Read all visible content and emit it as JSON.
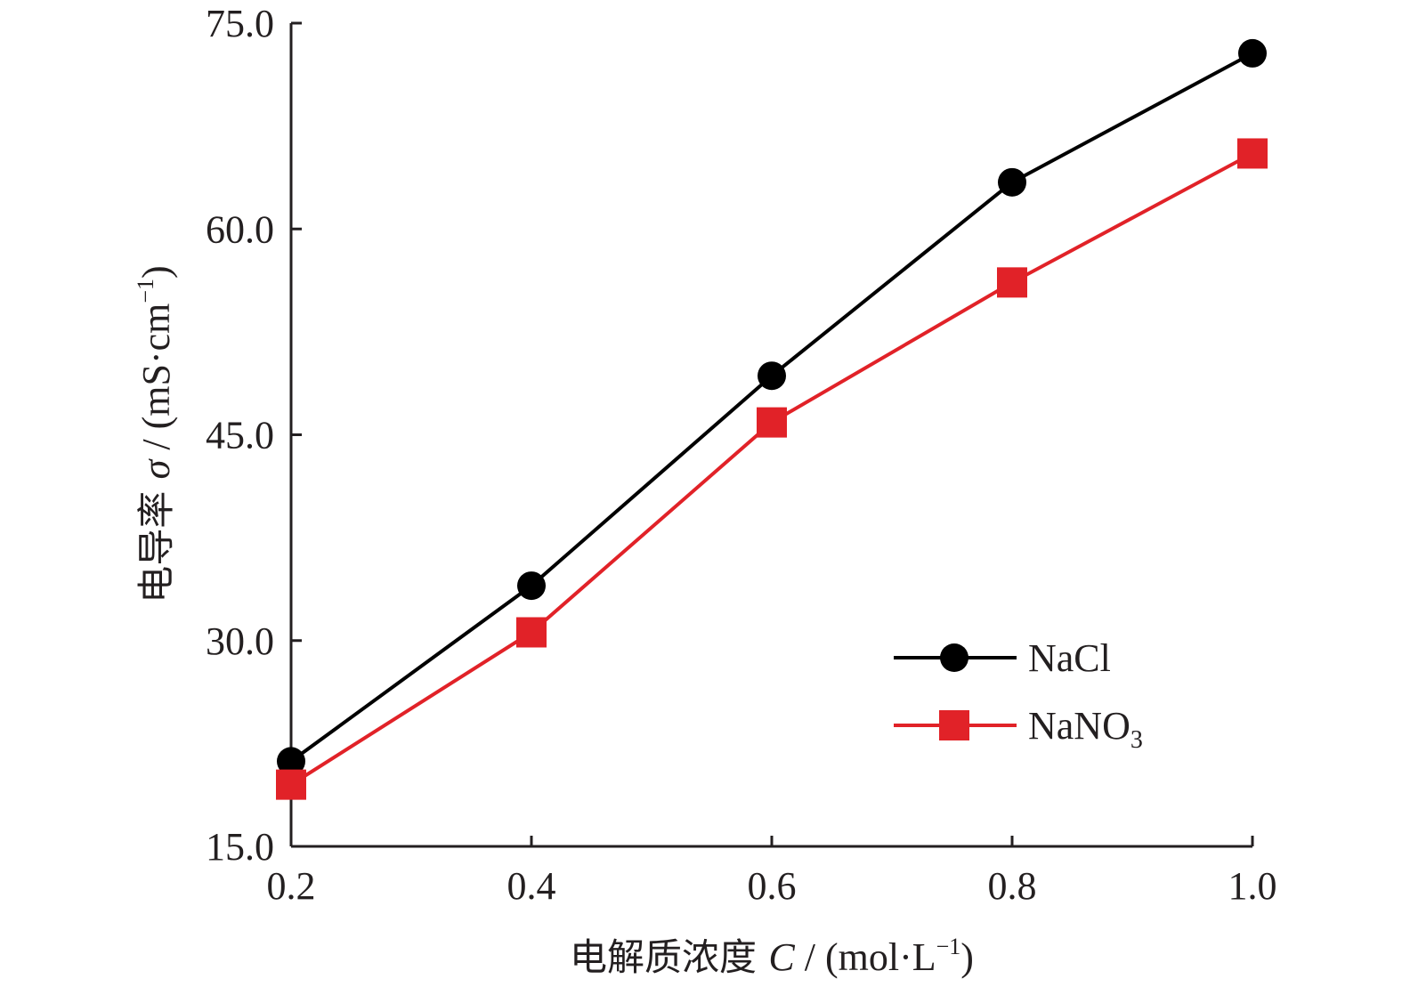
{
  "chart_data": {
    "type": "line",
    "x": [
      0.2,
      0.4,
      0.6,
      0.8,
      1.0
    ],
    "x_tick_labels": [
      "0.2",
      "0.4",
      "0.6",
      "0.8",
      "1.0"
    ],
    "xlim": [
      0.2,
      1.0
    ],
    "y_ticks": [
      15.0,
      30.0,
      45.0,
      60.0,
      75.0
    ],
    "y_tick_labels": [
      "15.0",
      "30.0",
      "45.0",
      "60.0",
      "75.0"
    ],
    "ylim": [
      15.0,
      75.0
    ],
    "xlabel": {
      "prefix": "电解质浓度 ",
      "symbol": "C",
      "unit_open": " / (mol·L",
      "unit_exp": "−1",
      "unit_close": ")"
    },
    "ylabel": {
      "prefix": "电导率 ",
      "symbol": "σ",
      "unit_open": " / (mS·cm",
      "unit_exp": "−1",
      "unit_close": ")"
    },
    "grid": false,
    "legend_position": "bottom-right",
    "series": [
      {
        "name": "NaCl",
        "name_base": "NaCl",
        "name_sub": "",
        "marker": "circle",
        "color": "#000000",
        "values": [
          21.2,
          34.0,
          49.3,
          63.4,
          72.8
        ]
      },
      {
        "name": "NaNO3",
        "name_base": "NaNO",
        "name_sub": "3",
        "marker": "square",
        "color": "#e12228",
        "values": [
          19.5,
          30.6,
          45.9,
          56.1,
          65.5
        ]
      }
    ]
  }
}
